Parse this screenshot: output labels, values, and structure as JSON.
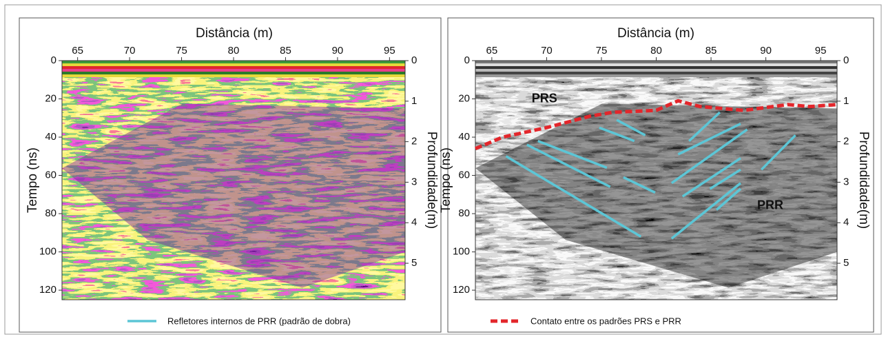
{
  "chart_data": [
    {
      "type": "radargram",
      "colormap": "rainbow",
      "x_label": "Distância (m)",
      "y_label": "Tempo (ns)",
      "y2_label": "Profundidade(m)",
      "xlim": [
        63.5,
        96.5
      ],
      "xticks": [
        65,
        70,
        75,
        80,
        85,
        90,
        95
      ],
      "ylim": [
        0,
        125
      ],
      "yticks": [
        0,
        20,
        40,
        60,
        80,
        100,
        120
      ],
      "y2lim": [
        0,
        5.9
      ],
      "y2ticks": [
        0,
        1,
        2,
        3,
        4,
        5
      ],
      "series": []
    },
    {
      "type": "radargram",
      "colormap": "grayscale",
      "x_label": "Distância (m)",
      "y_label": "Tempo (ns)",
      "y2_label": "Profundidade(m)",
      "xlim": [
        63.5,
        96.5
      ],
      "xticks": [
        65,
        70,
        75,
        80,
        85,
        90,
        95
      ],
      "ylim": [
        0,
        125
      ],
      "yticks": [
        0,
        20,
        40,
        60,
        80,
        100,
        120
      ],
      "y2lim": [
        0,
        5.9
      ],
      "y2ticks": [
        0,
        1,
        2,
        3,
        4,
        5
      ],
      "annotations": [
        {
          "text": "PRS",
          "x": 69.8,
          "y": 20
        },
        {
          "text": "PRR",
          "x": 90.4,
          "y": 76
        }
      ],
      "series": [
        {
          "name": "Refletores internos de PRR (padrão de dobra)",
          "color": "#5cc6d6",
          "dashed": false,
          "x": [
            66.3,
            78.6,
            null,
            68.2,
            75.8,
            null,
            69.2,
            75.5,
            null,
            74.8,
            78,
            null,
            76.4,
            79,
            null,
            77,
            79.9,
            null,
            81.4,
            87.7,
            null,
            81.4,
            88.3,
            null,
            82,
            87.7,
            null,
            83,
            85.8,
            null,
            82.4,
            87.7,
            null,
            84.9,
            87.7,
            null,
            85.5,
            87.7,
            null,
            89.6,
            92.7
          ],
          "values": [
            50,
            92,
            null,
            44,
            66,
            null,
            42,
            56,
            null,
            35,
            42,
            null,
            31,
            39,
            null,
            61,
            69,
            null,
            93,
            64,
            null,
            64,
            36,
            null,
            49,
            33,
            null,
            42,
            27,
            null,
            71,
            51,
            null,
            67,
            57,
            null,
            78,
            67,
            null,
            57,
            39
          ]
        },
        {
          "name": "Contato entre os padrões PRS e PRR",
          "color": "#e3262b",
          "dashed": true,
          "x": [
            63.5,
            66,
            70,
            74,
            76,
            80,
            82,
            84,
            88,
            92,
            94,
            96.5
          ],
          "values": [
            46,
            40,
            35,
            29,
            27,
            26,
            21,
            24,
            26,
            23,
            24,
            23
          ]
        }
      ]
    }
  ]
}
